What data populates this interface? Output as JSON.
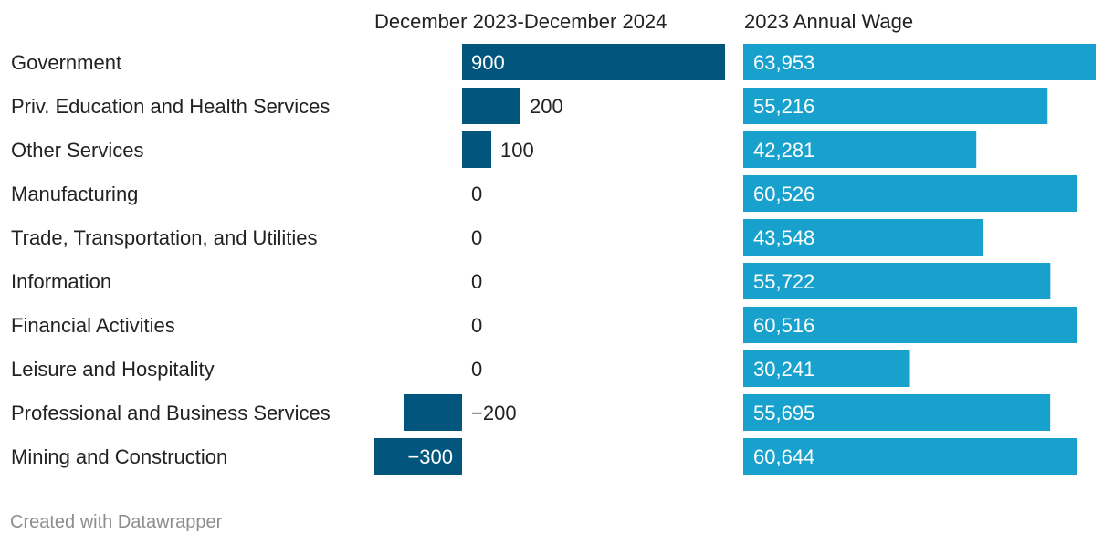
{
  "chart_data": {
    "type": "bar",
    "categories": [
      "Government",
      "Priv. Education and Health Services",
      "Other Services",
      "Manufacturing",
      "Trade, Transportation, and Utilities",
      "Information",
      "Financial Activities",
      "Leisure and Hospitality",
      "Professional and Business Services",
      "Mining and Construction"
    ],
    "series": [
      {
        "name": "December 2023-December 2024",
        "values": [
          900,
          200,
          100,
          0,
          0,
          0,
          0,
          0,
          -200,
          -300
        ],
        "labels": [
          "900",
          "200",
          "100",
          "0",
          "0",
          "0",
          "0",
          "0",
          "−200",
          "−300"
        ],
        "color": "#02567d",
        "range": [
          -300,
          900
        ]
      },
      {
        "name": "2023 Annual Wage",
        "values": [
          63953,
          55216,
          42281,
          60526,
          43548,
          55722,
          60516,
          30241,
          55695,
          60644
        ],
        "labels": [
          "63,953",
          "55,216",
          "42,281",
          "60,526",
          "43,548",
          "55,722",
          "60,516",
          "30,241",
          "55,695",
          "60,644"
        ],
        "color": "#18a1cd",
        "range": [
          0,
          63953
        ]
      }
    ],
    "title": "",
    "xlabel": "",
    "ylabel": ""
  },
  "colors": {
    "label_text": "#222222",
    "inside_label": "#ffffff",
    "footer_text": "#8d8d8d"
  },
  "footer": "Created with Datawrapper"
}
